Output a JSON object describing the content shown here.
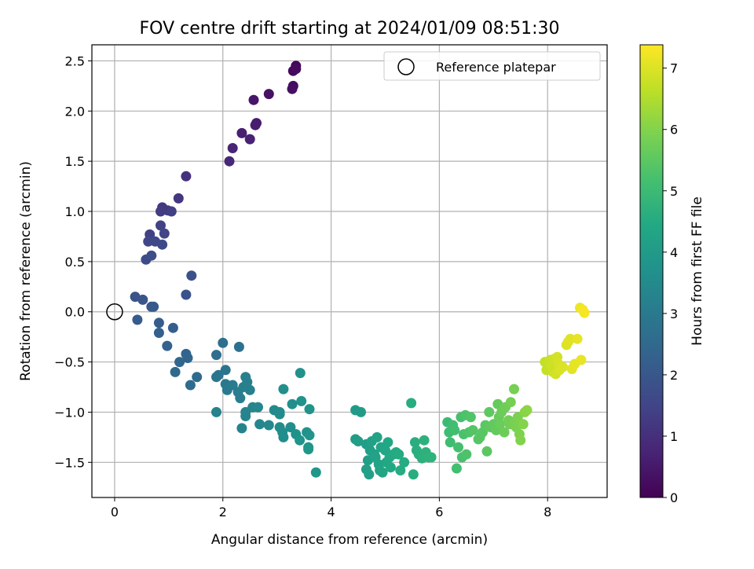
{
  "chart_data": {
    "type": "scatter",
    "title": "FOV centre drift starting at 2024/01/09 08:51:30",
    "xlabel": "Angular distance from reference (arcmin)",
    "ylabel": "Rotation from reference (arcmin)",
    "xlim": [
      -0.42,
      9.1
    ],
    "ylim": [
      -1.85,
      2.66
    ],
    "xticks": [
      0,
      2,
      4,
      6,
      8
    ],
    "yticks": [
      -1.5,
      -1.0,
      -0.5,
      0.0,
      0.5,
      1.0,
      1.5,
      2.0,
      2.5
    ],
    "grid": true,
    "legend": {
      "placement": "top-right",
      "entries": [
        "Reference platepar"
      ]
    },
    "reference_point": {
      "x": 0.0,
      "y": 0.0,
      "label": "Reference platepar"
    },
    "colorbar": {
      "label": "Hours from first FF file",
      "colormap": "viridis",
      "range": [
        0,
        7.38
      ],
      "ticks": [
        0,
        1,
        2,
        3,
        4,
        5,
        6,
        7
      ]
    },
    "series": [
      {
        "points": [
          [
            3.35,
            2.45,
            0.1
          ],
          [
            3.3,
            2.4,
            0.15
          ],
          [
            3.35,
            2.42,
            0.2
          ],
          [
            3.3,
            2.25,
            0.25
          ],
          [
            3.28,
            2.22,
            0.3
          ],
          [
            2.85,
            2.17,
            0.35
          ],
          [
            2.57,
            2.11,
            0.45
          ],
          [
            2.62,
            1.88,
            0.55
          ],
          [
            2.6,
            1.86,
            0.6
          ],
          [
            2.35,
            1.78,
            0.65
          ],
          [
            2.5,
            1.72,
            0.7
          ],
          [
            2.18,
            1.63,
            0.75
          ],
          [
            2.12,
            1.5,
            0.8
          ],
          [
            1.32,
            1.35,
            1.05
          ],
          [
            1.18,
            1.13,
            1.15
          ],
          [
            0.88,
            1.04,
            1.2
          ],
          [
            0.98,
            1.01,
            1.25
          ],
          [
            0.85,
            1.0,
            1.3
          ],
          [
            1.05,
            1.0,
            1.35
          ],
          [
            0.65,
            0.77,
            1.4
          ],
          [
            0.85,
            0.86,
            1.45
          ],
          [
            0.92,
            0.78,
            1.5
          ],
          [
            0.62,
            0.7,
            1.55
          ],
          [
            0.75,
            0.7,
            1.6
          ],
          [
            0.88,
            0.67,
            1.65
          ],
          [
            0.58,
            0.52,
            1.7
          ],
          [
            0.68,
            0.56,
            1.75
          ],
          [
            1.42,
            0.36,
            1.8
          ],
          [
            1.32,
            0.17,
            1.85
          ],
          [
            0.38,
            0.15,
            1.9
          ],
          [
            0.52,
            0.12,
            1.95
          ],
          [
            0.68,
            0.05,
            2.0
          ],
          [
            0.72,
            0.05,
            2.05
          ],
          [
            0.42,
            -0.08,
            2.1
          ],
          [
            0.82,
            -0.11,
            2.15
          ],
          [
            1.08,
            -0.16,
            2.2
          ],
          [
            0.82,
            -0.21,
            2.25
          ],
          [
            0.97,
            -0.34,
            2.3
          ],
          [
            1.32,
            -0.42,
            2.35
          ],
          [
            1.35,
            -0.46,
            2.4
          ],
          [
            1.2,
            -0.5,
            2.45
          ],
          [
            1.12,
            -0.6,
            2.5
          ],
          [
            1.52,
            -0.65,
            2.55
          ],
          [
            1.4,
            -0.73,
            2.6
          ],
          [
            1.88,
            -0.43,
            2.65
          ],
          [
            2.0,
            -0.31,
            2.7
          ],
          [
            2.3,
            -0.35,
            2.75
          ],
          [
            2.05,
            -0.58,
            2.8
          ],
          [
            1.88,
            -0.65,
            2.85
          ],
          [
            1.92,
            -0.63,
            2.9
          ],
          [
            2.05,
            -0.72,
            2.95
          ],
          [
            2.08,
            -0.78,
            3.0
          ],
          [
            2.18,
            -0.73,
            3.05
          ],
          [
            2.28,
            -0.8,
            3.1
          ],
          [
            2.32,
            -0.86,
            3.12
          ],
          [
            2.42,
            -0.65,
            3.15
          ],
          [
            2.45,
            -0.7,
            3.18
          ],
          [
            2.5,
            -0.78,
            3.2
          ],
          [
            2.38,
            -0.75,
            3.22
          ],
          [
            1.88,
            -1.0,
            3.25
          ],
          [
            2.35,
            -1.16,
            3.28
          ],
          [
            2.42,
            -1.0,
            3.3
          ],
          [
            2.42,
            -1.04,
            3.32
          ],
          [
            2.55,
            -0.95,
            3.35
          ],
          [
            2.65,
            -0.95,
            3.38
          ],
          [
            2.68,
            -1.12,
            3.4
          ],
          [
            2.85,
            -1.13,
            3.42
          ],
          [
            2.95,
            -0.98,
            3.45
          ],
          [
            3.05,
            -1.0,
            3.48
          ],
          [
            3.05,
            -1.02,
            3.5
          ],
          [
            3.05,
            -1.15,
            3.52
          ],
          [
            3.1,
            -1.2,
            3.55
          ],
          [
            3.12,
            -1.25,
            3.58
          ],
          [
            3.25,
            -1.15,
            3.6
          ],
          [
            3.12,
            -0.77,
            3.62
          ],
          [
            3.28,
            -0.92,
            3.65
          ],
          [
            3.35,
            -1.22,
            3.68
          ],
          [
            3.43,
            -0.61,
            3.7
          ],
          [
            3.45,
            -0.89,
            3.72
          ],
          [
            3.55,
            -1.2,
            3.74
          ],
          [
            3.6,
            -0.97,
            3.76
          ],
          [
            3.42,
            -1.28,
            3.78
          ],
          [
            3.6,
            -1.23,
            3.8
          ],
          [
            3.58,
            -1.35,
            3.82
          ],
          [
            3.58,
            -1.37,
            3.84
          ],
          [
            3.72,
            -1.6,
            3.86
          ],
          [
            4.45,
            -0.98,
            4.0
          ],
          [
            4.55,
            -1.0,
            4.02
          ],
          [
            4.45,
            -1.27,
            4.05
          ],
          [
            4.5,
            -1.29,
            4.08
          ],
          [
            4.65,
            -1.32,
            4.1
          ],
          [
            4.68,
            -1.48,
            4.12
          ],
          [
            4.65,
            -1.57,
            4.14
          ],
          [
            4.7,
            -1.62,
            4.16
          ],
          [
            4.72,
            -1.38,
            4.18
          ],
          [
            4.75,
            -1.29,
            4.2
          ],
          [
            4.8,
            -1.42,
            4.22
          ],
          [
            4.82,
            -1.45,
            4.24
          ],
          [
            4.85,
            -1.25,
            4.26
          ],
          [
            4.88,
            -1.52,
            4.28
          ],
          [
            4.9,
            -1.58,
            4.3
          ],
          [
            4.92,
            -1.35,
            4.32
          ],
          [
            4.95,
            -1.6,
            4.34
          ],
          [
            5.0,
            -1.38,
            4.36
          ],
          [
            5.02,
            -1.5,
            4.38
          ],
          [
            5.05,
            -1.3,
            4.4
          ],
          [
            5.08,
            -1.45,
            4.42
          ],
          [
            5.1,
            -1.55,
            4.44
          ],
          [
            5.15,
            -1.42,
            4.46
          ],
          [
            5.2,
            -1.4,
            4.48
          ],
          [
            5.25,
            -1.42,
            4.5
          ],
          [
            5.28,
            -1.58,
            4.52
          ],
          [
            5.35,
            -1.5,
            4.54
          ],
          [
            5.48,
            -0.91,
            4.56
          ],
          [
            5.52,
            -1.62,
            4.58
          ],
          [
            5.55,
            -1.3,
            4.6
          ],
          [
            5.58,
            -1.38,
            4.62
          ],
          [
            5.62,
            -1.42,
            4.64
          ],
          [
            5.68,
            -1.46,
            4.66
          ],
          [
            5.72,
            -1.28,
            4.68
          ],
          [
            5.75,
            -1.4,
            4.7
          ],
          [
            5.8,
            -1.45,
            4.72
          ],
          [
            5.85,
            -1.45,
            4.74
          ],
          [
            6.15,
            -1.1,
            5.0
          ],
          [
            6.18,
            -1.2,
            5.05
          ],
          [
            6.2,
            -1.3,
            5.08
          ],
          [
            6.25,
            -1.13,
            5.1
          ],
          [
            6.28,
            -1.18,
            5.12
          ],
          [
            6.32,
            -1.56,
            5.15
          ],
          [
            6.35,
            -1.35,
            5.18
          ],
          [
            6.4,
            -1.05,
            5.2
          ],
          [
            6.42,
            -1.45,
            5.22
          ],
          [
            6.45,
            -1.22,
            5.25
          ],
          [
            6.48,
            -1.03,
            5.28
          ],
          [
            6.5,
            -1.42,
            5.3
          ],
          [
            6.55,
            -1.2,
            5.32
          ],
          [
            6.58,
            -1.05,
            5.35
          ],
          [
            6.62,
            -1.18,
            5.38
          ],
          [
            6.72,
            -1.27,
            5.4
          ],
          [
            6.75,
            -1.25,
            5.42
          ],
          [
            6.8,
            -1.2,
            5.45
          ],
          [
            6.85,
            -1.13,
            5.48
          ],
          [
            6.88,
            -1.39,
            5.5
          ],
          [
            6.92,
            -1.0,
            5.52
          ],
          [
            6.95,
            -1.15,
            5.55
          ],
          [
            7.0,
            -1.12,
            5.58
          ],
          [
            7.05,
            -1.18,
            5.6
          ],
          [
            7.08,
            -0.92,
            5.62
          ],
          [
            7.1,
            -1.05,
            5.65
          ],
          [
            7.12,
            -1.12,
            5.68
          ],
          [
            7.15,
            -1.0,
            5.7
          ],
          [
            7.2,
            -1.2,
            5.72
          ],
          [
            7.22,
            -0.95,
            5.75
          ],
          [
            7.28,
            -1.08,
            5.78
          ],
          [
            7.3,
            -1.12,
            5.8
          ],
          [
            7.32,
            -0.9,
            5.82
          ],
          [
            7.38,
            -0.77,
            5.85
          ],
          [
            7.4,
            -1.1,
            5.88
          ],
          [
            7.42,
            -1.15,
            5.9
          ],
          [
            7.45,
            -1.05,
            5.92
          ],
          [
            7.48,
            -1.22,
            5.95
          ],
          [
            7.5,
            -1.28,
            5.98
          ],
          [
            7.55,
            -1.12,
            6.0
          ],
          [
            7.58,
            -1.0,
            6.05
          ],
          [
            7.62,
            -0.98,
            6.1
          ],
          [
            7.95,
            -0.5,
            6.7
          ],
          [
            7.98,
            -0.58,
            6.72
          ],
          [
            8.02,
            -0.52,
            6.75
          ],
          [
            8.05,
            -0.48,
            6.78
          ],
          [
            8.08,
            -0.55,
            6.8
          ],
          [
            8.1,
            -0.6,
            6.82
          ],
          [
            8.12,
            -0.47,
            6.85
          ],
          [
            8.15,
            -0.62,
            6.88
          ],
          [
            8.18,
            -0.45,
            6.9
          ],
          [
            8.2,
            -0.52,
            6.92
          ],
          [
            8.22,
            -0.58,
            6.95
          ],
          [
            8.28,
            -0.55,
            6.98
          ],
          [
            8.35,
            -0.33,
            7.0
          ],
          [
            8.38,
            -0.3,
            7.02
          ],
          [
            8.42,
            -0.27,
            7.05
          ],
          [
            8.45,
            -0.57,
            7.08
          ],
          [
            8.5,
            -0.52,
            7.1
          ],
          [
            8.55,
            -0.27,
            7.12
          ],
          [
            8.62,
            -0.48,
            7.15
          ],
          [
            8.6,
            0.04,
            7.2
          ],
          [
            8.65,
            0.02,
            7.25
          ],
          [
            8.68,
            -0.01,
            7.3
          ]
        ]
      }
    ]
  }
}
